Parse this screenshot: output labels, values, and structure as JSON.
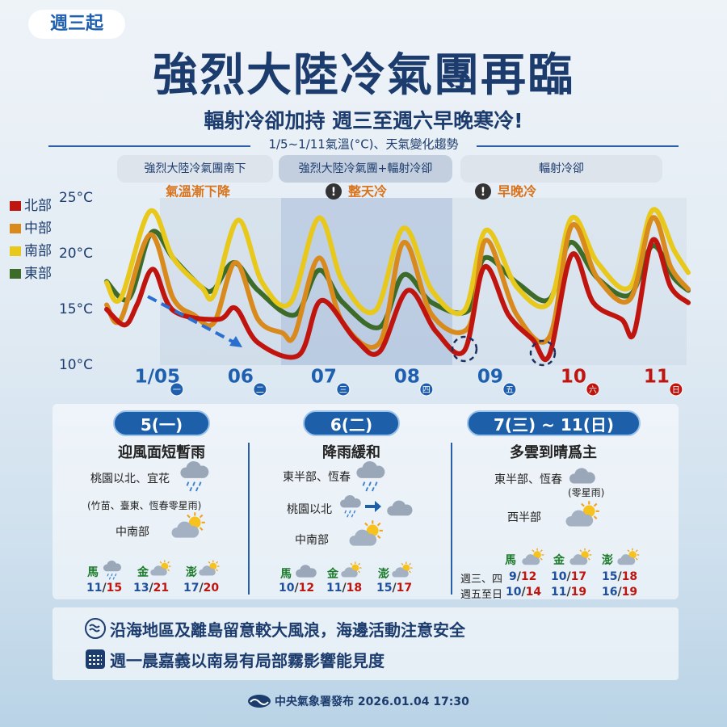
{
  "header": {
    "badge": "週三起",
    "title": "強烈大陸冷氣團再臨",
    "subtitle": "輻射冷卻加持 週三至週六早晚寒冷!"
  },
  "chart_data": {
    "type": "line",
    "title": "1/5~1/11氣溫(°C)、天氣變化趨勢",
    "phases": [
      {
        "label": "強烈大陸冷氣團南下",
        "note": "氣溫漸下降"
      },
      {
        "label": "強烈大陸冷氣團+輻射冷卻",
        "note": "整天冷"
      },
      {
        "label": "輻射冷卻",
        "note": "早晚冷"
      }
    ],
    "xlim": [
      4.39,
      11.38
    ],
    "xticks": [
      {
        "value": 5,
        "label": "1/05"
      },
      {
        "value": 6,
        "label": "06"
      },
      {
        "value": 7,
        "label": "07"
      },
      {
        "value": 8,
        "label": "08"
      },
      {
        "value": 9,
        "label": "09"
      },
      {
        "value": 10,
        "label": "10"
      },
      {
        "value": 11,
        "label": "11"
      }
    ],
    "weekdays": [
      "一",
      "二",
      "三",
      "四",
      "五",
      "六",
      "日"
    ],
    "xtick_colors": [
      "#1f5fb0",
      "#1f5fb0",
      "#1f5fb0",
      "#1f5fb0",
      "#1f5fb0",
      "#c0150f",
      "#c0150f"
    ],
    "ylim": [
      10,
      25
    ],
    "yticks": [
      {
        "value": 25,
        "label": "25°C"
      },
      {
        "value": 20,
        "label": "20°C"
      },
      {
        "value": 15,
        "label": "15°C"
      },
      {
        "value": 10,
        "label": "10°C"
      }
    ],
    "grid": false,
    "legend": "left",
    "series": [
      {
        "name": "北部",
        "color": "#c0150f",
        "x": [
          4.39,
          4.61,
          4.76,
          4.95,
          5.19,
          5.73,
          5.94,
          6.21,
          6.7,
          6.97,
          7.38,
          7.67,
          8.01,
          8.35,
          8.69,
          8.93,
          9.22,
          9.51,
          9.71,
          9.98,
          10.24,
          10.58,
          10.73,
          10.95,
          11.17,
          11.38
        ],
        "values": [
          15.0,
          13.6,
          15.5,
          18.6,
          14.9,
          14.1,
          15.1,
          12.0,
          10.9,
          15.8,
          12.3,
          11.2,
          16.7,
          13.0,
          11.3,
          18.8,
          14.5,
          12.3,
          10.9,
          19.9,
          15.6,
          14.1,
          12.9,
          21.2,
          17.0,
          15.6
        ]
      },
      {
        "name": "中部",
        "color": "#d98a1c",
        "x": [
          4.39,
          4.56,
          4.91,
          5.19,
          5.44,
          5.68,
          5.94,
          6.21,
          6.5,
          6.65,
          6.94,
          7.23,
          7.67,
          7.96,
          8.3,
          8.74,
          8.95,
          9.32,
          9.71,
          9.98,
          10.29,
          10.68,
          10.95,
          11.17,
          11.38
        ],
        "values": [
          15.4,
          14.1,
          21.7,
          16.0,
          14.5,
          13.8,
          19.2,
          14.1,
          12.9,
          12.7,
          19.6,
          13.8,
          12.0,
          21.0,
          14.5,
          13.4,
          21.2,
          14.5,
          12.5,
          22.5,
          17.8,
          15.9,
          23.2,
          18.8,
          16.8
        ]
      },
      {
        "name": "南部",
        "color": "#e8c81a",
        "x": [
          4.39,
          4.56,
          4.91,
          5.19,
          5.53,
          5.68,
          5.97,
          6.26,
          6.6,
          6.94,
          7.23,
          7.62,
          7.96,
          8.3,
          8.69,
          8.95,
          9.32,
          9.71,
          9.98,
          10.29,
          10.68,
          10.95,
          11.21,
          11.38
        ],
        "values": [
          17.4,
          16.0,
          23.8,
          19.6,
          17.0,
          16.3,
          23.0,
          17.4,
          15.6,
          23.2,
          17.4,
          14.9,
          22.3,
          16.7,
          14.9,
          22.1,
          17.0,
          15.6,
          23.2,
          19.2,
          17.0,
          23.9,
          20.3,
          18.3
        ]
      },
      {
        "name": "東部",
        "color": "#3d6b2a",
        "x": [
          4.39,
          4.66,
          4.93,
          5.19,
          5.53,
          5.68,
          5.92,
          6.21,
          6.65,
          6.94,
          7.23,
          7.67,
          7.96,
          8.3,
          8.74,
          8.93,
          9.32,
          9.71,
          9.96,
          10.29,
          10.68,
          10.95,
          11.21,
          11.38
        ],
        "values": [
          17.5,
          16.0,
          21.9,
          19.6,
          17.0,
          16.8,
          19.2,
          16.7,
          14.5,
          18.5,
          15.6,
          13.4,
          18.1,
          15.6,
          14.9,
          19.6,
          17.4,
          15.9,
          21.0,
          17.8,
          16.3,
          20.7,
          17.8,
          16.7
        ]
      }
    ]
  },
  "panels": [
    {
      "header": "5(一)",
      "title": "迎風面短暫雨",
      "items": [
        "桃園以北、宜花",
        "(竹苗、臺東、恆春零星雨)",
        "中南部"
      ],
      "islands": [
        {
          "name": "馬",
          "temp": "11/15"
        },
        {
          "name": "金",
          "temp": "13/21"
        },
        {
          "name": "澎",
          "temp": "17/20"
        }
      ]
    },
    {
      "header": "6(二)",
      "title": "降雨緩和",
      "items": [
        "東半部、恆春",
        "桃園以北",
        "中南部"
      ],
      "islands": [
        {
          "name": "馬",
          "temp": "10/12"
        },
        {
          "name": "金",
          "temp": "11/18"
        },
        {
          "name": "澎",
          "temp": "15/17"
        }
      ]
    },
    {
      "header": "7(三) ~ 11(日)",
      "title": "多雲到晴爲主",
      "items": [
        "東半部、恆春",
        "(零星雨)",
        "西半部"
      ],
      "islands": [
        "馬",
        "金",
        "澎"
      ],
      "rows": [
        {
          "label": "週三、四",
          "temps": [
            "9/12",
            "10/17",
            "15/18"
          ]
        },
        {
          "label": "週五至日",
          "temps": [
            "10/14",
            "11/19",
            "16/19"
          ]
        }
      ]
    }
  ],
  "notes": [
    "沿海地區及離島留意較大風浪，海邊活動注意安全",
    "週一晨嘉義以南易有局部霧影響能見度"
  ],
  "footer": "中央氣象署發布 2026.01.04 17:30"
}
